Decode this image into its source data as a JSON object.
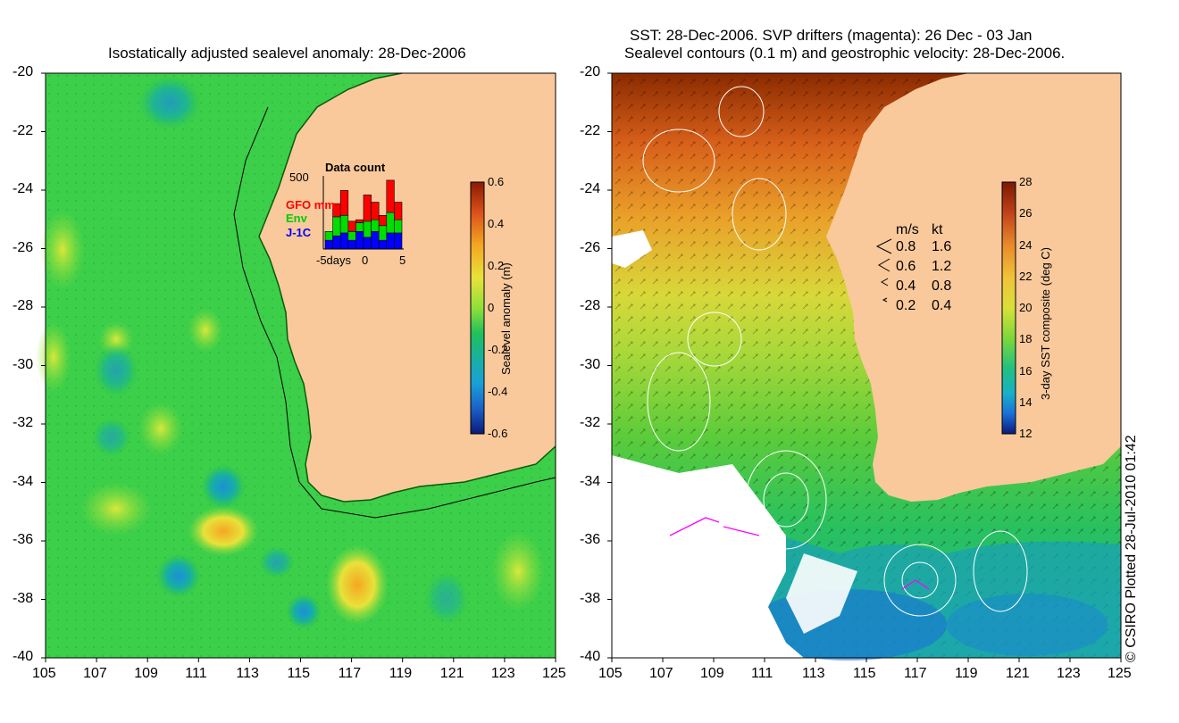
{
  "left_panel": {
    "title": "Isostatically adjusted sealevel anomaly: 28-Dec-2006",
    "colorbar": {
      "label": "Sealevel anomaly (m)",
      "ticks": [
        "0.6",
        "0.4",
        "0.2",
        "0",
        "-0.2",
        "-0.4",
        "-0.6"
      ],
      "colors": [
        "#8b1a00",
        "#d9501a",
        "#f5a623",
        "#e8e23a",
        "#8fe03a",
        "#22c05a",
        "#18b0a0",
        "#1aa0d8",
        "#1a60c8",
        "#0a1a7a"
      ]
    },
    "inset": {
      "title": "Data count",
      "ymax_label": "500",
      "legend": [
        {
          "label": "GFO mm",
          "color": "#ff0000"
        },
        {
          "label": "Env",
          "color": "#00dd00"
        },
        {
          "label": "J-1C",
          "color": "#0000ff"
        }
      ],
      "xticks": [
        "-5days",
        "0",
        "5"
      ],
      "chart_data": {
        "type": "bar",
        "title": "Data count",
        "categories": [
          "-5",
          "-4",
          "-3",
          "-2",
          "-1",
          "0",
          "1",
          "2",
          "3",
          "4"
        ],
        "series": [
          {
            "name": "J-1C",
            "values": [
              60,
              90,
              110,
              60,
              120,
              80,
              120,
              60,
              110,
              110
            ]
          },
          {
            "name": "Env",
            "values": [
              60,
              130,
              120,
              60,
              60,
              110,
              80,
              100,
              140,
              90
            ]
          },
          {
            "name": "GFO mm",
            "values": [
              0,
              90,
              170,
              70,
              20,
              180,
              120,
              70,
              220,
              120
            ]
          }
        ],
        "ylim": [
          0,
          500
        ]
      }
    }
  },
  "right_panel": {
    "title_line1": "SST: 28-Dec-2006. SVP drifters (magenta): 26 Dec - 03 Jan",
    "title_line2": "Sealevel contours (0.1 m) and geostrophic velocity: 28-Dec-2006.",
    "colorbar": {
      "label": "3-day SST composite (deg C)",
      "ticks": [
        "28",
        "26",
        "24",
        "22",
        "20",
        "18",
        "16",
        "14",
        "12"
      ],
      "colors": [
        "#7a1a00",
        "#c0401a",
        "#e88a2a",
        "#f0c23a",
        "#d8e03a",
        "#7cd83a",
        "#22c080",
        "#18b0c8",
        "#1a70d8",
        "#0a1a7a"
      ]
    },
    "velocity_legend": {
      "header_ms": "m/s",
      "header_kt": "kt",
      "rows": [
        {
          "ms": "0.8",
          "kt": "1.6"
        },
        {
          "ms": "0.6",
          "kt": "1.2"
        },
        {
          "ms": "0.4",
          "kt": "0.8"
        },
        {
          "ms": "0.2",
          "kt": "0.4"
        }
      ]
    }
  },
  "axes": {
    "lat_labels": [
      "-20",
      "-22",
      "-24",
      "-26",
      "-28",
      "-30",
      "-32",
      "-34",
      "-36",
      "-38",
      "-40"
    ],
    "lon_labels": [
      "105",
      "107",
      "109",
      "111",
      "113",
      "115",
      "117",
      "119",
      "121",
      "123",
      "125"
    ]
  },
  "credit": "© CSIRO Plotted 28-Jul-2010 01:42",
  "colors": {
    "land": "#f9c99b",
    "ocean_base": "#3ccf4a",
    "contour": "#ffffff",
    "drifter": "#ff00ff"
  }
}
